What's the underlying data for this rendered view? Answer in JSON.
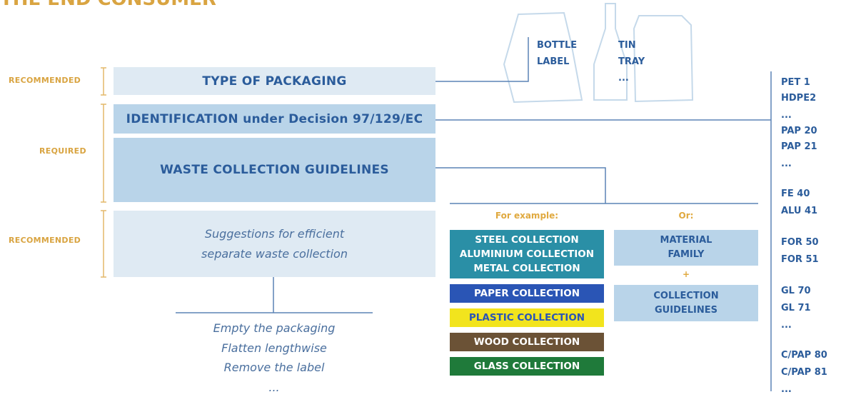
{
  "header": {
    "title": "THE END CONSUMER"
  },
  "levels": [
    "RECOMMENDED",
    "REQUIRED",
    "RECOMMENDED"
  ],
  "boxes": {
    "type": "TYPE OF PACKAGING",
    "identification": "IDENTIFICATION under Decision 97/129/EC",
    "guidelines": "WASTE COLLECTION GUIDELINES",
    "suggestions": [
      "Suggestions for efficient",
      "separate waste collection"
    ]
  },
  "instructions": [
    "Empty the packaging",
    "Flatten lengthwise",
    "Remove the label",
    "..."
  ],
  "illustration": {
    "bottle": [
      "BOTTLE",
      "LABEL"
    ],
    "tin": [
      "TIN",
      "TRAY",
      "..."
    ]
  },
  "examples": {
    "for_example": "For example:",
    "or": "Or:",
    "collections": [
      [
        "STEEL COLLECTION",
        "ALUMINIUM COLLECTION",
        "METAL COLLECTION"
      ],
      [
        "PAPER COLLECTION"
      ],
      [
        "PLASTIC COLLECTION"
      ],
      [
        "WOOD COLLECTION"
      ],
      [
        "GLASS COLLECTION"
      ]
    ],
    "material_family": [
      "MATERIAL",
      "FAMILY"
    ],
    "plus": "+",
    "collection_guidelines": [
      "COLLECTION",
      "GUIDELINES"
    ]
  },
  "codes": [
    "PET 1",
    "HDPE2",
    "...",
    "PAP 20",
    "PAP 21",
    "...",
    "FE 40",
    "ALU 41",
    "FOR 50",
    "FOR 51",
    "GL 70",
    "GL 71",
    "...",
    "C/PAP 80",
    "C/PAP 81",
    "..."
  ]
}
